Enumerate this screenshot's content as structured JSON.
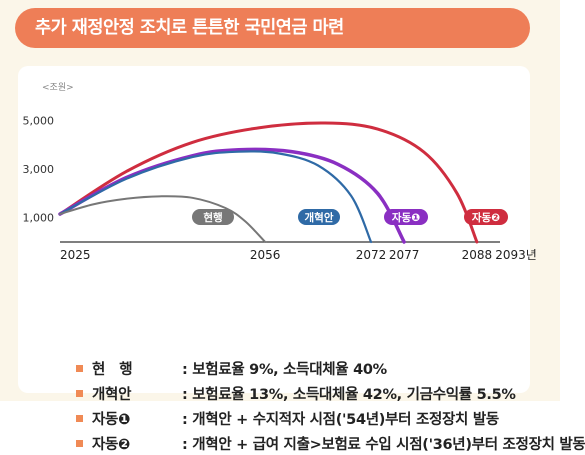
{
  "header": {
    "title": "추가 재정안정 조치로 튼튼한 국민연금 마련"
  },
  "colors": {
    "header_bg": "#ee7e57",
    "current": "#777777",
    "reform": "#2f6aa6",
    "auto1": "#8a2fc2",
    "auto2": "#cf2d3f",
    "bullet": "#f08a55"
  },
  "chart_data": {
    "type": "line",
    "unit": "<조원>",
    "y_ticks": [
      "5,000",
      "3,000",
      "1,000"
    ],
    "x_tick_labels": [
      "2025",
      "2056",
      "2072",
      "2077",
      "2088",
      "2093년"
    ],
    "x_ticks": [
      2025,
      2056,
      2072,
      2077,
      2088,
      2093
    ],
    "xlim": [
      2025,
      2093
    ],
    "ylim": [
      0,
      5600
    ],
    "series": [
      {
        "name": "현행",
        "color": "#777777",
        "points": [
          [
            2025,
            1150
          ],
          [
            2030,
            1550
          ],
          [
            2035,
            1780
          ],
          [
            2040,
            1880
          ],
          [
            2045,
            1820
          ],
          [
            2050,
            1400
          ],
          [
            2053,
            850
          ],
          [
            2056,
            0
          ]
        ]
      },
      {
        "name": "개혁안",
        "color": "#2f6aa6",
        "points": [
          [
            2025,
            1150
          ],
          [
            2035,
            2600
          ],
          [
            2045,
            3500
          ],
          [
            2052,
            3720
          ],
          [
            2058,
            3650
          ],
          [
            2064,
            3150
          ],
          [
            2069,
            1900
          ],
          [
            2072,
            0
          ]
        ]
      },
      {
        "name": "자동❶",
        "color": "#8a2fc2",
        "points": [
          [
            2025,
            1150
          ],
          [
            2035,
            2650
          ],
          [
            2045,
            3550
          ],
          [
            2052,
            3800
          ],
          [
            2060,
            3720
          ],
          [
            2067,
            3200
          ],
          [
            2073,
            2000
          ],
          [
            2077,
            0
          ]
        ]
      },
      {
        "name": "자동❷",
        "color": "#cf2d3f",
        "points": [
          [
            2025,
            1150
          ],
          [
            2035,
            2900
          ],
          [
            2045,
            4100
          ],
          [
            2055,
            4700
          ],
          [
            2065,
            4900
          ],
          [
            2073,
            4650
          ],
          [
            2080,
            3700
          ],
          [
            2085,
            2000
          ],
          [
            2088,
            0
          ]
        ]
      }
    ]
  },
  "legend": [
    {
      "label": "현　행",
      "desc": ": 보험료율 9%, 소득대체율 40%"
    },
    {
      "label": "개혁안",
      "desc": ": 보험료율 13%, 소득대체율 42%, 기금수익률 5.5%"
    },
    {
      "label": "자동❶",
      "desc": ": 개혁안 + 수지적자 시점('54년)부터 조정장치 발동"
    },
    {
      "label": "자동❷",
      "desc": ": 개혁안 + 급여 지출>보험료 수입 시점('36년)부터 조정장치 발동"
    }
  ]
}
